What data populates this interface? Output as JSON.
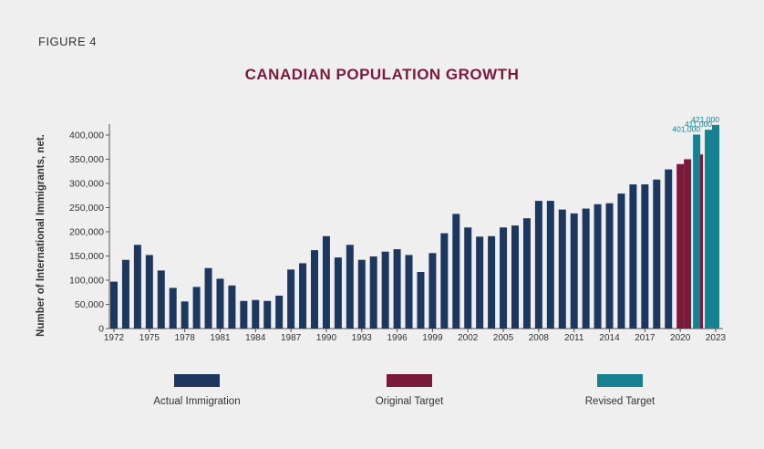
{
  "figure_label": "FIGURE 4",
  "chart_data": {
    "type": "bar",
    "title": "CANADIAN POPULATION GROWTH",
    "ylabel": "Number of International Immigrants, net.",
    "ylim": [
      0,
      400000
    ],
    "yticks": [
      0,
      50000,
      100000,
      150000,
      200000,
      250000,
      300000,
      350000,
      400000
    ],
    "ytick_labels": [
      "0",
      "50,000",
      "100,000",
      "150,000",
      "200,000",
      "250,000",
      "300,000",
      "350,000",
      "400,000"
    ],
    "xticks": [
      "1972",
      "1975",
      "1978",
      "1981",
      "1984",
      "1987",
      "1990",
      "1993",
      "1996",
      "1999",
      "2002",
      "2005",
      "2008",
      "2011",
      "2014",
      "2017",
      "2020",
      "2023"
    ],
    "colors": {
      "actual": "#1d375e",
      "original": "#7a1a3a",
      "revised": "#168190"
    },
    "series": [
      {
        "name": "Actual Immigration",
        "color": "#1d375e",
        "points": [
          {
            "year": 1972,
            "value": 97000
          },
          {
            "year": 1973,
            "value": 142000
          },
          {
            "year": 1974,
            "value": 173000
          },
          {
            "year": 1975,
            "value": 152000
          },
          {
            "year": 1976,
            "value": 120000
          },
          {
            "year": 1977,
            "value": 84000
          },
          {
            "year": 1978,
            "value": 56000
          },
          {
            "year": 1979,
            "value": 86000
          },
          {
            "year": 1980,
            "value": 125000
          },
          {
            "year": 1981,
            "value": 103000
          },
          {
            "year": 1982,
            "value": 89000
          },
          {
            "year": 1983,
            "value": 57000
          },
          {
            "year": 1984,
            "value": 59000
          },
          {
            "year": 1985,
            "value": 57000
          },
          {
            "year": 1986,
            "value": 68000
          },
          {
            "year": 1987,
            "value": 122000
          },
          {
            "year": 1988,
            "value": 135000
          },
          {
            "year": 1989,
            "value": 162000
          },
          {
            "year": 1990,
            "value": 191000
          },
          {
            "year": 1991,
            "value": 147000
          },
          {
            "year": 1992,
            "value": 173000
          },
          {
            "year": 1993,
            "value": 142000
          },
          {
            "year": 1994,
            "value": 149000
          },
          {
            "year": 1995,
            "value": 159000
          },
          {
            "year": 1996,
            "value": 164000
          },
          {
            "year": 1997,
            "value": 152000
          },
          {
            "year": 1998,
            "value": 117000
          },
          {
            "year": 1999,
            "value": 156000
          },
          {
            "year": 2000,
            "value": 197000
          },
          {
            "year": 2001,
            "value": 237000
          },
          {
            "year": 2002,
            "value": 209000
          },
          {
            "year": 2003,
            "value": 190000
          },
          {
            "year": 2004,
            "value": 191000
          },
          {
            "year": 2005,
            "value": 209000
          },
          {
            "year": 2006,
            "value": 213000
          },
          {
            "year": 2007,
            "value": 228000
          },
          {
            "year": 2008,
            "value": 264000
          },
          {
            "year": 2009,
            "value": 264000
          },
          {
            "year": 2010,
            "value": 246000
          },
          {
            "year": 2011,
            "value": 238000
          },
          {
            "year": 2012,
            "value": 248000
          },
          {
            "year": 2013,
            "value": 257000
          },
          {
            "year": 2014,
            "value": 259000
          },
          {
            "year": 2015,
            "value": 279000
          },
          {
            "year": 2016,
            "value": 298000
          },
          {
            "year": 2017,
            "value": 298000
          },
          {
            "year": 2018,
            "value": 308000
          },
          {
            "year": 2019,
            "value": 329000
          }
        ]
      },
      {
        "name": "Original Target",
        "color": "#7a1a3a",
        "points": [
          {
            "year": 2020,
            "value": 340000
          },
          {
            "year": 2021,
            "value": 350000
          },
          {
            "year": 2022,
            "value": 360000
          }
        ]
      },
      {
        "name": "Revised Target",
        "color": "#168190",
        "points": [
          {
            "year": 2021,
            "value": 401000,
            "label": "401,000"
          },
          {
            "year": 2022,
            "value": 411000,
            "label": "411,000"
          },
          {
            "year": 2023,
            "value": 421000,
            "label": "421,000"
          }
        ]
      }
    ]
  },
  "legend": {
    "actual": "Actual Immigration",
    "original": "Original Target",
    "revised": "Revised Target"
  }
}
